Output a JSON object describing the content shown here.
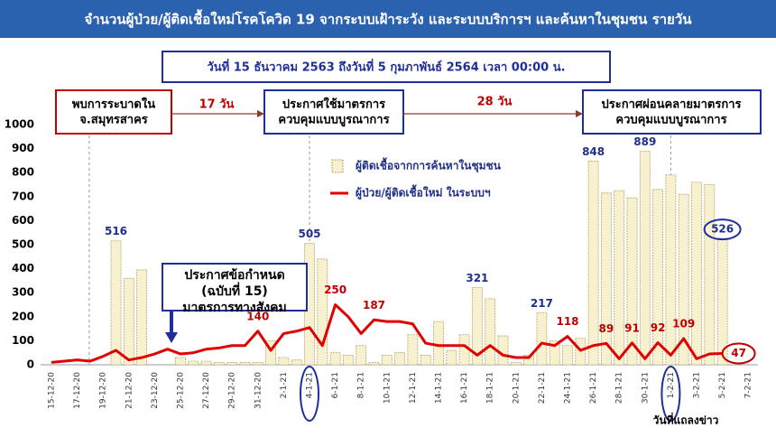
{
  "chart_data": {
    "type": "combo",
    "title": "จำนวนผู้ป่วย/ผู้ติดเชื้อใหม่โรคโควิด 19 จากระบบเฝ้าระวัง และระบบบริการฯ และค้นหาในชุมชน รายวัน",
    "subtitle": "วันที่ 15 ธันวาคม 2563 ถึงวันที่ 5 กุมภาพันธ์ 2564 เวลา 00:00 น.",
    "categories": [
      "15-12-20",
      null,
      "17-12-20",
      null,
      "19-12-20",
      null,
      "21-12-20",
      null,
      "23-12-20",
      null,
      "25-12-20",
      null,
      "27-12-20",
      null,
      "29-12-20",
      null,
      "31-12-20",
      null,
      "2-1-21",
      null,
      "4-1-21",
      null,
      "6-1-21",
      null,
      "8-1-21",
      null,
      "10-1-21",
      null,
      "12-1-21",
      null,
      "14-1-21",
      null,
      "16-1-21",
      null,
      "18-1-21",
      null,
      "20-1-21",
      null,
      "22-1-21",
      null,
      "24-1-21",
      null,
      "26-1-21",
      null,
      "28-1-21",
      null,
      "30-1-21",
      null,
      "1-2-21",
      null,
      "3-2-21",
      null,
      "5-2-21",
      null,
      "7-2-21"
    ],
    "series": [
      {
        "name": "ผู้ติดเชื้อจากการค้นหาในชุมชน",
        "type": "bar",
        "color": "#f8f1cf",
        "values": [
          0,
          0,
          0,
          0,
          0,
          516,
          360,
          395,
          0,
          0,
          30,
          15,
          15,
          10,
          10,
          10,
          10,
          100,
          30,
          20,
          505,
          440,
          50,
          40,
          80,
          10,
          40,
          50,
          125,
          40,
          180,
          60,
          125,
          321,
          275,
          120,
          10,
          40,
          217,
          100,
          80,
          110,
          848,
          715,
          725,
          695,
          889,
          730,
          790,
          710,
          760,
          750,
          526,
          null,
          null
        ],
        "value_labels": [
          null,
          null,
          null,
          null,
          null,
          "516",
          null,
          null,
          null,
          null,
          null,
          null,
          null,
          null,
          null,
          null,
          null,
          null,
          null,
          null,
          "505",
          null,
          null,
          null,
          null,
          null,
          null,
          null,
          null,
          null,
          null,
          null,
          null,
          "321",
          null,
          null,
          null,
          null,
          "217",
          null,
          null,
          null,
          "848",
          null,
          null,
          null,
          "889",
          null,
          null,
          null,
          null,
          null,
          "526",
          null,
          null
        ]
      },
      {
        "name": "ผู้ป่วย/ผู้ติดเชื้อใหม่ ในระบบฯ",
        "type": "line",
        "color": "#e00000",
        "values": [
          10,
          15,
          20,
          15,
          35,
          60,
          20,
          30,
          45,
          65,
          45,
          50,
          65,
          70,
          80,
          80,
          140,
          60,
          130,
          140,
          155,
          80,
          250,
          200,
          130,
          187,
          180,
          180,
          170,
          90,
          80,
          80,
          80,
          40,
          80,
          40,
          30,
          30,
          90,
          80,
          118,
          60,
          80,
          89,
          25,
          91,
          25,
          92,
          40,
          109,
          25,
          45,
          47,
          null,
          null
        ],
        "value_labels": [
          null,
          null,
          null,
          null,
          null,
          null,
          null,
          null,
          null,
          null,
          null,
          null,
          null,
          null,
          null,
          null,
          "140",
          null,
          null,
          null,
          null,
          null,
          "250",
          null,
          null,
          "187",
          null,
          null,
          null,
          null,
          null,
          null,
          null,
          null,
          null,
          null,
          null,
          null,
          null,
          null,
          "118",
          null,
          null,
          "89",
          null,
          "91",
          null,
          "92",
          null,
          "109",
          null,
          null,
          "47",
          null,
          null
        ]
      }
    ],
    "ylim": [
      0,
      1000
    ],
    "yticks": [
      0,
      100,
      200,
      300,
      400,
      500,
      600,
      700,
      800,
      900,
      1000
    ],
    "grid": false,
    "annotations": [
      {
        "lines": [
          "พบการระบาดใน",
          "จ.สมุทรสาคร"
        ]
      },
      {
        "lines": [
          "17 วัน"
        ]
      },
      {
        "lines": [
          "ประกาศใช้มาตรการ",
          "ควบคุมแบบบูรณาการ"
        ]
      },
      {
        "lines": [
          "28 วัน"
        ]
      },
      {
        "lines": [
          "ประกาศผ่อนคลายมาตรการ",
          "ควบคุมแบบบูรณาการ"
        ]
      },
      {
        "lines": [
          "ประกาศข้อกำหนด",
          "(ฉบับที่ 15)",
          "มาตรการทางสังคม"
        ]
      },
      {
        "lines": [
          "วันที่แถลงข่าว"
        ]
      }
    ]
  }
}
